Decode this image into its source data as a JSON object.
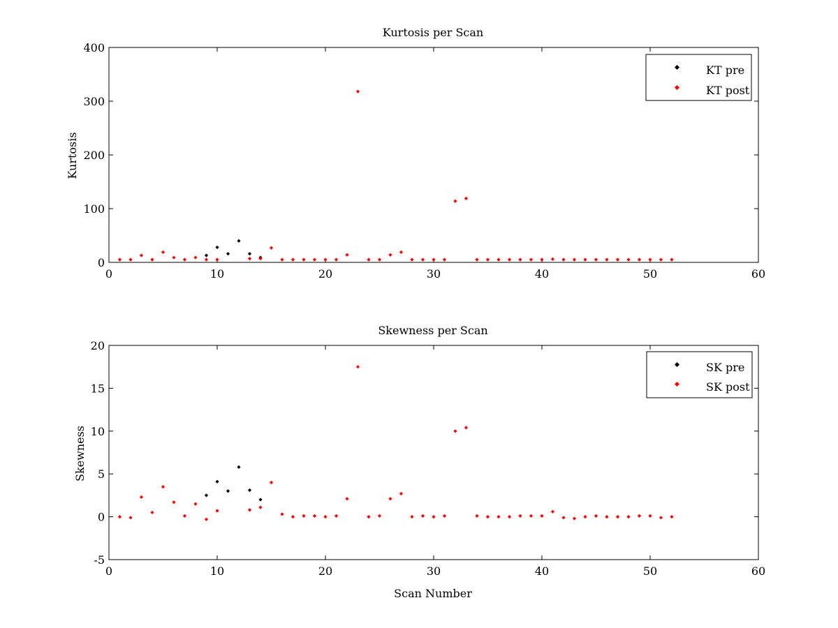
{
  "colors": {
    "pre": "#000000",
    "post": "#ff0000",
    "axis": "#000000",
    "background": "#ffffff"
  },
  "chart_data": [
    {
      "type": "scatter",
      "title": "Kurtosis per Scan",
      "xlabel": "",
      "ylabel": "Kurtosis",
      "xlim": [
        0,
        60
      ],
      "ylim": [
        0,
        400
      ],
      "xticks": [
        0,
        10,
        20,
        30,
        40,
        50,
        60
      ],
      "yticks": [
        0,
        100,
        200,
        300,
        400
      ],
      "grid": false,
      "legend_position": "top-right",
      "series": [
        {
          "name": "KT pre",
          "color": "#000000",
          "points": [
            [
              9,
              13
            ],
            [
              10,
              28
            ],
            [
              11,
              16
            ],
            [
              12,
              40
            ],
            [
              13,
              16
            ],
            [
              14,
              9
            ]
          ]
        },
        {
          "name": "KT post",
          "color": "#ff0000",
          "points": [
            [
              1,
              5
            ],
            [
              2,
              5
            ],
            [
              3,
              13
            ],
            [
              4,
              5
            ],
            [
              5,
              19
            ],
            [
              6,
              9
            ],
            [
              7,
              5
            ],
            [
              8,
              9
            ],
            [
              9,
              5
            ],
            [
              10,
              5
            ],
            [
              13,
              7
            ],
            [
              14,
              7
            ],
            [
              15,
              27
            ],
            [
              16,
              5
            ],
            [
              17,
              5
            ],
            [
              18,
              5
            ],
            [
              19,
              5
            ],
            [
              20,
              5
            ],
            [
              21,
              5
            ],
            [
              22,
              14
            ],
            [
              23,
              318
            ],
            [
              24,
              5
            ],
            [
              25,
              5
            ],
            [
              26,
              14
            ],
            [
              27,
              19
            ],
            [
              28,
              5
            ],
            [
              29,
              5
            ],
            [
              30,
              5
            ],
            [
              31,
              5
            ],
            [
              32,
              114
            ],
            [
              33,
              119
            ],
            [
              34,
              5
            ],
            [
              35,
              5
            ],
            [
              36,
              5
            ],
            [
              37,
              5
            ],
            [
              38,
              5
            ],
            [
              39,
              5
            ],
            [
              40,
              5
            ],
            [
              41,
              6
            ],
            [
              42,
              5
            ],
            [
              43,
              5
            ],
            [
              44,
              5
            ],
            [
              45,
              5
            ],
            [
              46,
              5
            ],
            [
              47,
              5
            ],
            [
              48,
              5
            ],
            [
              49,
              5
            ],
            [
              50,
              5
            ],
            [
              51,
              5
            ],
            [
              52,
              5
            ]
          ]
        }
      ]
    },
    {
      "type": "scatter",
      "title": "Skewness per Scan",
      "xlabel": "Scan Number",
      "ylabel": "Skewness",
      "xlim": [
        0,
        60
      ],
      "ylim": [
        -5,
        20
      ],
      "xticks": [
        0,
        10,
        20,
        30,
        40,
        50,
        60
      ],
      "yticks": [
        -5,
        0,
        5,
        10,
        15,
        20
      ],
      "grid": false,
      "legend_position": "top-right",
      "series": [
        {
          "name": "SK pre",
          "color": "#000000",
          "points": [
            [
              9,
              2.5
            ],
            [
              10,
              4.1
            ],
            [
              11,
              3.0
            ],
            [
              12,
              5.8
            ],
            [
              13,
              3.1
            ],
            [
              14,
              2.0
            ]
          ]
        },
        {
          "name": "SK post",
          "color": "#ff0000",
          "points": [
            [
              1,
              0
            ],
            [
              2,
              -0.1
            ],
            [
              3,
              2.3
            ],
            [
              4,
              0.5
            ],
            [
              5,
              3.5
            ],
            [
              6,
              1.7
            ],
            [
              7,
              0.1
            ],
            [
              8,
              1.5
            ],
            [
              9,
              -0.3
            ],
            [
              10,
              0.7
            ],
            [
              13,
              0.8
            ],
            [
              14,
              1.1
            ],
            [
              15,
              4.0
            ],
            [
              16,
              0.3
            ],
            [
              17,
              0
            ],
            [
              18,
              0.1
            ],
            [
              19,
              0.1
            ],
            [
              20,
              0
            ],
            [
              21,
              0.1
            ],
            [
              22,
              2.1
            ],
            [
              23,
              17.5
            ],
            [
              24,
              0
            ],
            [
              25,
              0.1
            ],
            [
              26,
              2.1
            ],
            [
              27,
              2.7
            ],
            [
              28,
              0
            ],
            [
              29,
              0.1
            ],
            [
              30,
              0
            ],
            [
              31,
              0.1
            ],
            [
              32,
              10.0
            ],
            [
              33,
              10.4
            ],
            [
              34,
              0.1
            ],
            [
              35,
              0
            ],
            [
              36,
              0
            ],
            [
              37,
              0
            ],
            [
              38,
              0.1
            ],
            [
              39,
              0.1
            ],
            [
              40,
              0.1
            ],
            [
              41,
              0.6
            ],
            [
              42,
              -0.1
            ],
            [
              43,
              -0.2
            ],
            [
              44,
              0
            ],
            [
              45,
              0.1
            ],
            [
              46,
              0
            ],
            [
              47,
              0
            ],
            [
              48,
              0
            ],
            [
              49,
              0.1
            ],
            [
              50,
              0.1
            ],
            [
              51,
              -0.1
            ],
            [
              52,
              0
            ]
          ]
        }
      ]
    }
  ]
}
